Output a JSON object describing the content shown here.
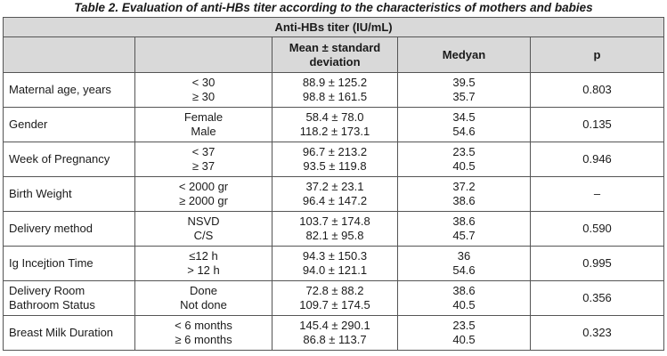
{
  "caption": "Table 2. Evaluation of anti-HBs titer according to the characteristics of mothers and babies",
  "header": {
    "group": "Anti-HBs titer (IU/mL)",
    "mean_sd": "Mean ± standard deviation",
    "median": "Medyan",
    "p": "p"
  },
  "rows": [
    {
      "label": "Maternal age, years",
      "cat1": "< 30",
      "cat2": "≥ 30",
      "mean1": "88.9 ± 125.2",
      "mean2": "98.8 ± 161.5",
      "med1": "39.5",
      "med2": "35.7",
      "p": "0.803"
    },
    {
      "label": "Gender",
      "cat1": "Female",
      "cat2": "Male",
      "mean1": "58.4 ± 78.0",
      "mean2": "118.2 ± 173.1",
      "med1": "34.5",
      "med2": "54.6",
      "p": "0.135"
    },
    {
      "label": "Week of Pregnancy",
      "cat1": "< 37",
      "cat2": "≥ 37",
      "mean1": "96.7 ± 213.2",
      "mean2": "93.5 ± 119.8",
      "med1": "23.5",
      "med2": "40.5",
      "p": "0.946"
    },
    {
      "label": "Birth Weight",
      "cat1": "< 2000 gr",
      "cat2": "≥ 2000 gr",
      "mean1": "37.2 ± 23.1",
      "mean2": "96.4 ± 147.2",
      "med1": "37.2",
      "med2": "38.6",
      "p": "–"
    },
    {
      "label": "Delivery method",
      "cat1": "NSVD",
      "cat2": "C/S",
      "mean1": "103.7 ± 174.8",
      "mean2": "82.1 ± 95.8",
      "med1": "38.6",
      "med2": "45.7",
      "p": "0.590"
    },
    {
      "label": "Ig Incejtion Time",
      "cat1": "≤12 h",
      "cat2": "> 12 h",
      "mean1": "94.3 ± 150.3",
      "mean2": "94.0 ± 121.1",
      "med1": "36",
      "med2": "54.6",
      "p": "0.995"
    },
    {
      "label": "Delivery Room Bathroom Status",
      "cat1": "Done",
      "cat2": "Not done",
      "mean1": "72.8 ± 88.2",
      "mean2": "109.7 ± 174.5",
      "med1": "38.6",
      "med2": "40.5",
      "p": "0.356"
    },
    {
      "label": "Breast Milk Duration",
      "cat1": "< 6 months",
      "cat2": "≥ 6 months",
      "mean1": "145.4 ± 290.1",
      "mean2": "86.8 ± 113.7",
      "med1": "23.5",
      "med2": "40.5",
      "p": "0.323"
    }
  ]
}
